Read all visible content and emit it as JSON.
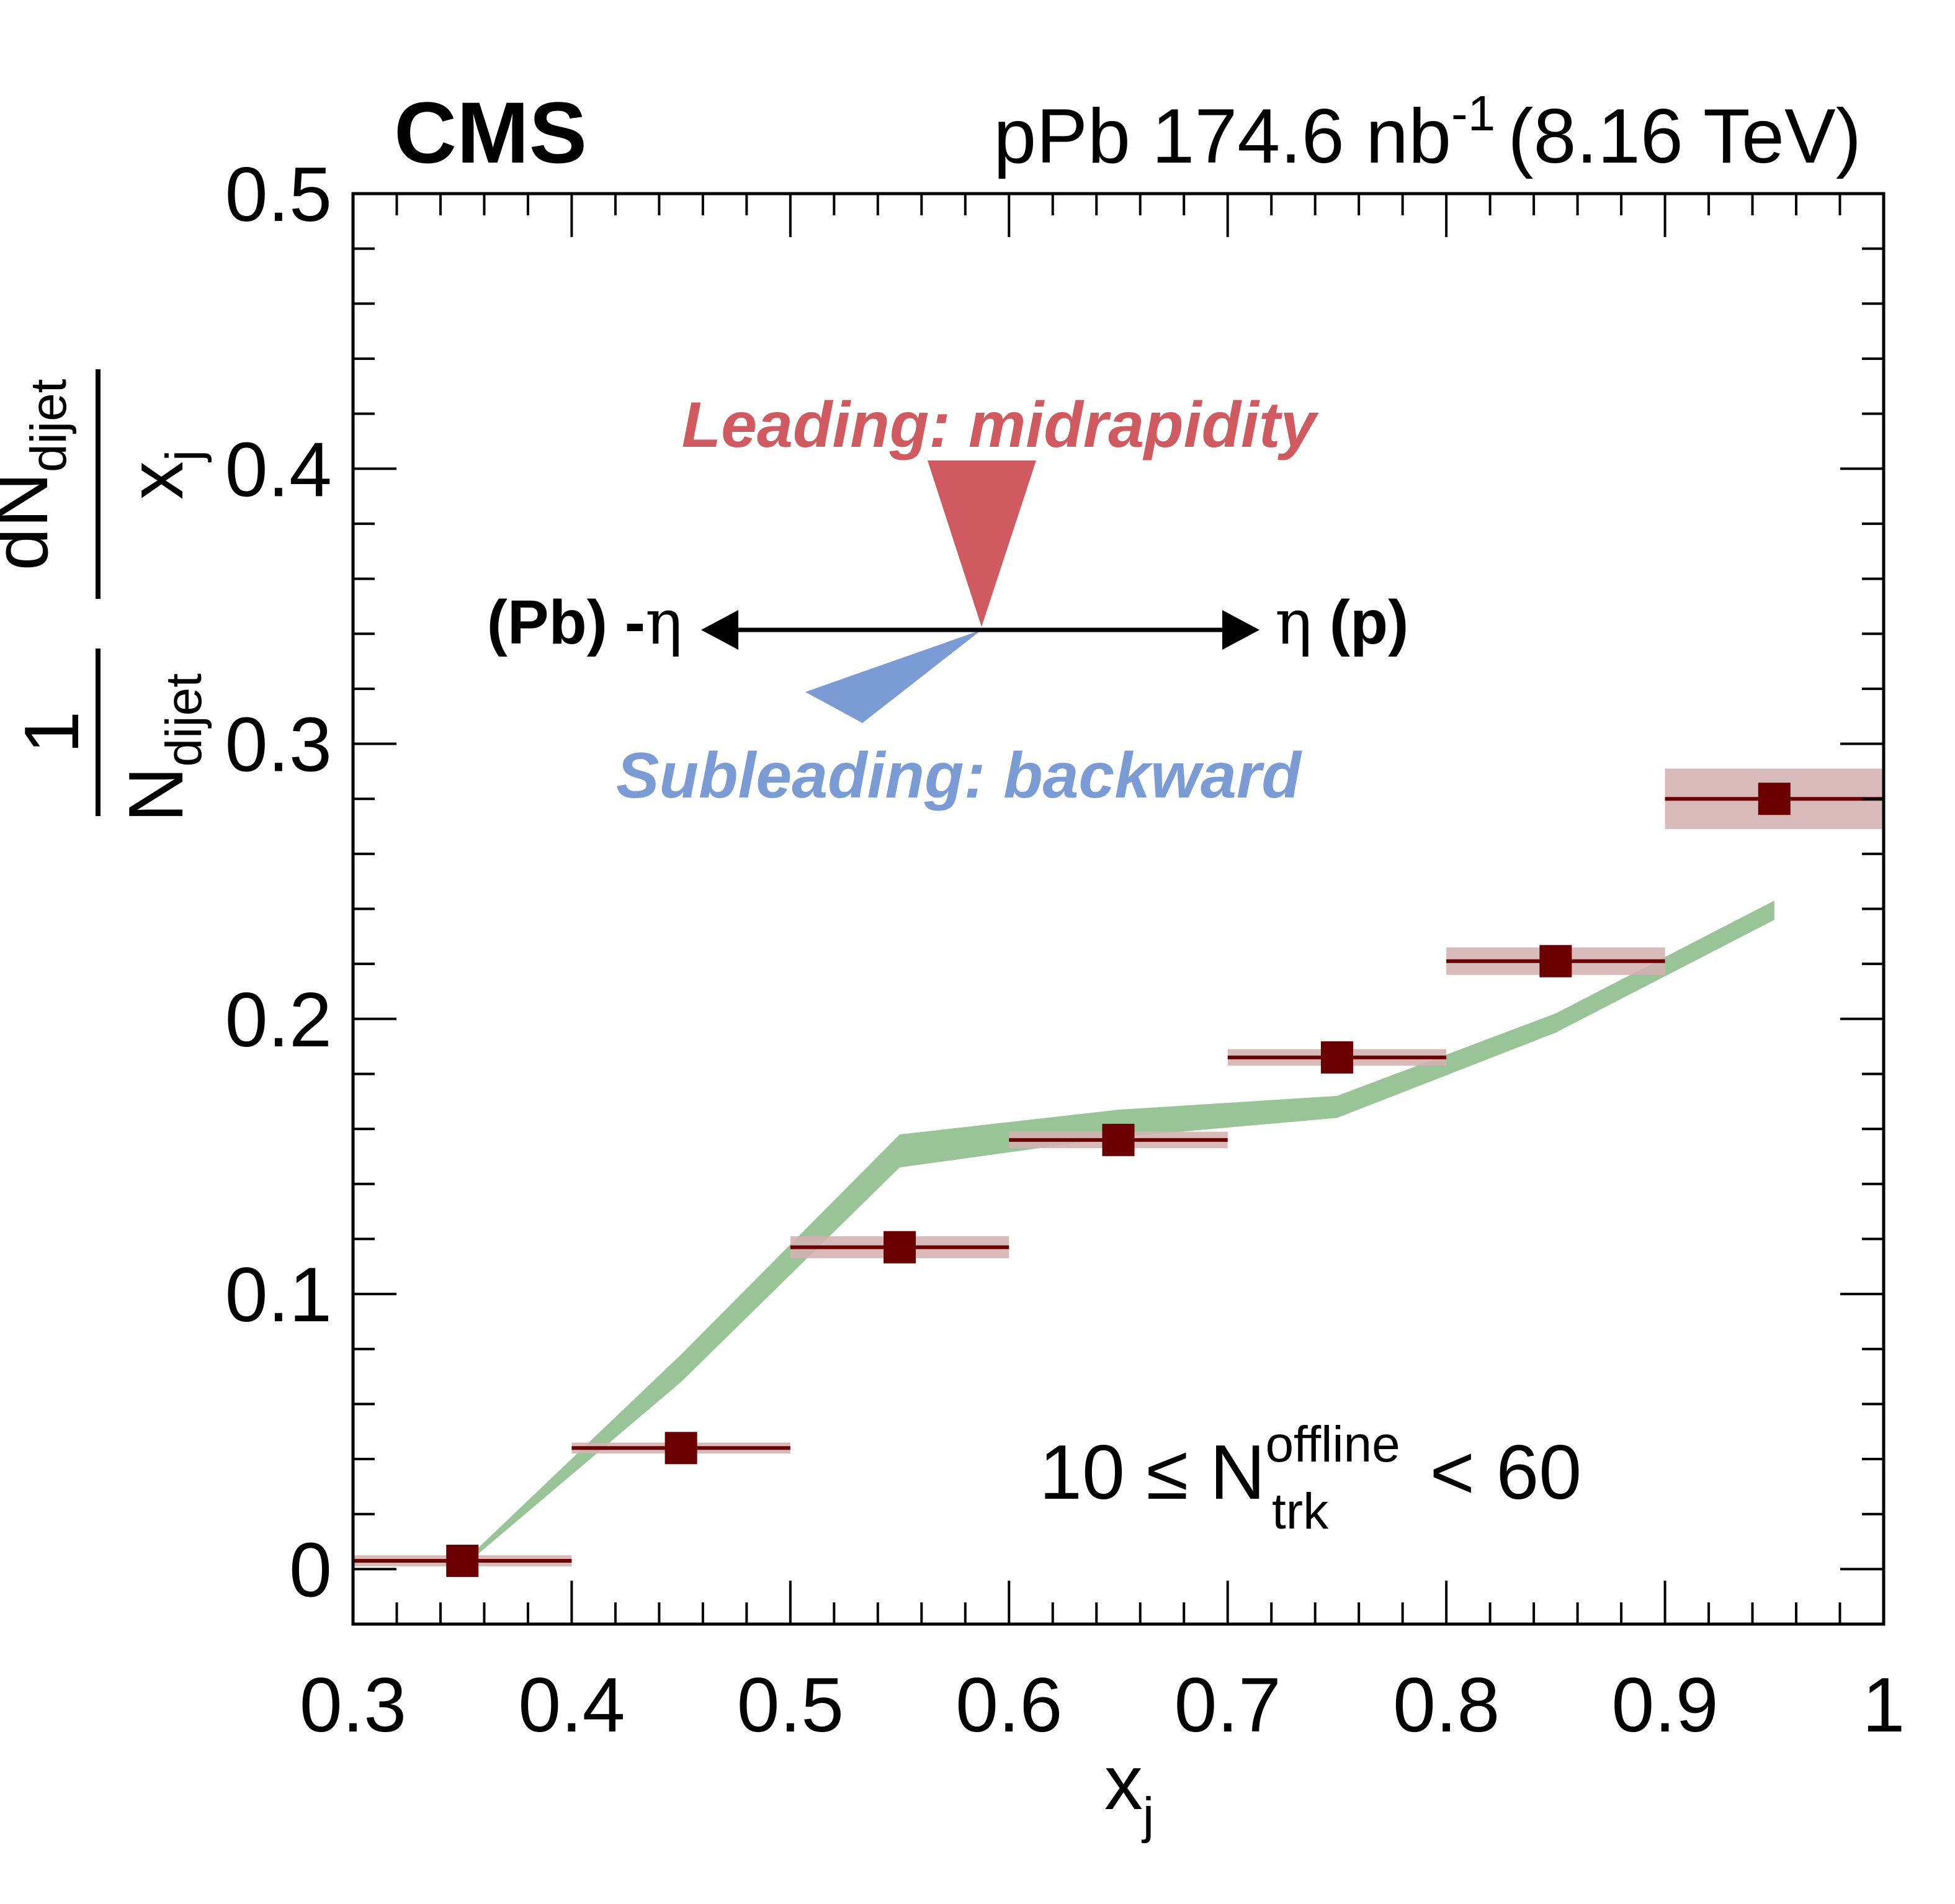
{
  "header": {
    "experiment": "CMS",
    "lumi_prefix": "pPb 174.6 nb",
    "lumi_exp": "-1",
    "energy": "(8.16 TeV)"
  },
  "annotations": {
    "leading_label": "Leading: midrapidity",
    "subleading_label": "Subleading: backward",
    "left_arrow_label": "(Pb) -",
    "left_arrow_symbol": "η",
    "right_arrow_symbol": "η",
    "right_arrow_label": " (p)",
    "selection": {
      "prefix": "10 ≤ N",
      "superscript": "offline",
      "subscript": "trk",
      "suffix": " < 60"
    },
    "colors": {
      "leading": "#cf5b60",
      "subleading": "#7b9bd4",
      "arrow": "#000000"
    }
  },
  "chart_data": {
    "type": "scatter",
    "x_label": {
      "base": "x",
      "sub": "j"
    },
    "y_label": {
      "frac1_num": "1",
      "frac1_den_base": "N",
      "frac1_den_sub": "dijet",
      "frac2_num_base": "dN",
      "frac2_num_sub": "dijet",
      "frac2_den_base": "x",
      "frac2_den_sub": "j"
    },
    "xlim": [
      0.3,
      1.0
    ],
    "ylim": [
      -0.02,
      0.5
    ],
    "x_ticks": [
      {
        "value": 0.3,
        "label": "0.3"
      },
      {
        "value": 0.4,
        "label": "0.4"
      },
      {
        "value": 0.5,
        "label": "0.5"
      },
      {
        "value": 0.6,
        "label": "0.6"
      },
      {
        "value": 0.7,
        "label": "0.7"
      },
      {
        "value": 0.8,
        "label": "0.8"
      },
      {
        "value": 0.9,
        "label": "0.9"
      },
      {
        "value": 1.0,
        "label": "1"
      }
    ],
    "y_ticks": [
      {
        "value": 0,
        "label": "0"
      },
      {
        "value": 0.1,
        "label": "0.1"
      },
      {
        "value": 0.2,
        "label": "0.2"
      },
      {
        "value": 0.3,
        "label": "0.3"
      },
      {
        "value": 0.4,
        "label": "0.4"
      },
      {
        "value": 0.5,
        "label": "0.5"
      }
    ],
    "x_minor_step": 0.02,
    "y_minor_step": 0.02,
    "data_color": "#6b0000",
    "syst_color": "#d4b2b4",
    "band_color": "#99c497",
    "points": [
      {
        "x": 0.35,
        "xlow": 0.3,
        "xhigh": 0.4,
        "y": 0.003,
        "syst": 0.002
      },
      {
        "x": 0.45,
        "xlow": 0.4,
        "xhigh": 0.5,
        "y": 0.044,
        "syst": 0.002
      },
      {
        "x": 0.55,
        "xlow": 0.5,
        "xhigh": 0.6,
        "y": 0.117,
        "syst": 0.004
      },
      {
        "x": 0.65,
        "xlow": 0.6,
        "xhigh": 0.7,
        "y": 0.156,
        "syst": 0.003
      },
      {
        "x": 0.75,
        "xlow": 0.7,
        "xhigh": 0.8,
        "y": 0.186,
        "syst": 0.003
      },
      {
        "x": 0.85,
        "xlow": 0.8,
        "xhigh": 0.9,
        "y": 0.221,
        "syst": 0.005
      },
      {
        "x": 0.95,
        "xlow": 0.9,
        "xhigh": 1.0,
        "y": 0.28,
        "syst": 0.011
      }
    ],
    "band": [
      {
        "x": 0.355,
        "low": 0.004,
        "high": 0.006
      },
      {
        "x": 0.45,
        "low": 0.068,
        "high": 0.078
      },
      {
        "x": 0.55,
        "low": 0.146,
        "high": 0.158
      },
      {
        "x": 0.65,
        "low": 0.157,
        "high": 0.167
      },
      {
        "x": 0.75,
        "low": 0.164,
        "high": 0.172
      },
      {
        "x": 0.85,
        "low": 0.195,
        "high": 0.202
      },
      {
        "x": 0.95,
        "low": 0.236,
        "high": 0.243
      }
    ]
  }
}
